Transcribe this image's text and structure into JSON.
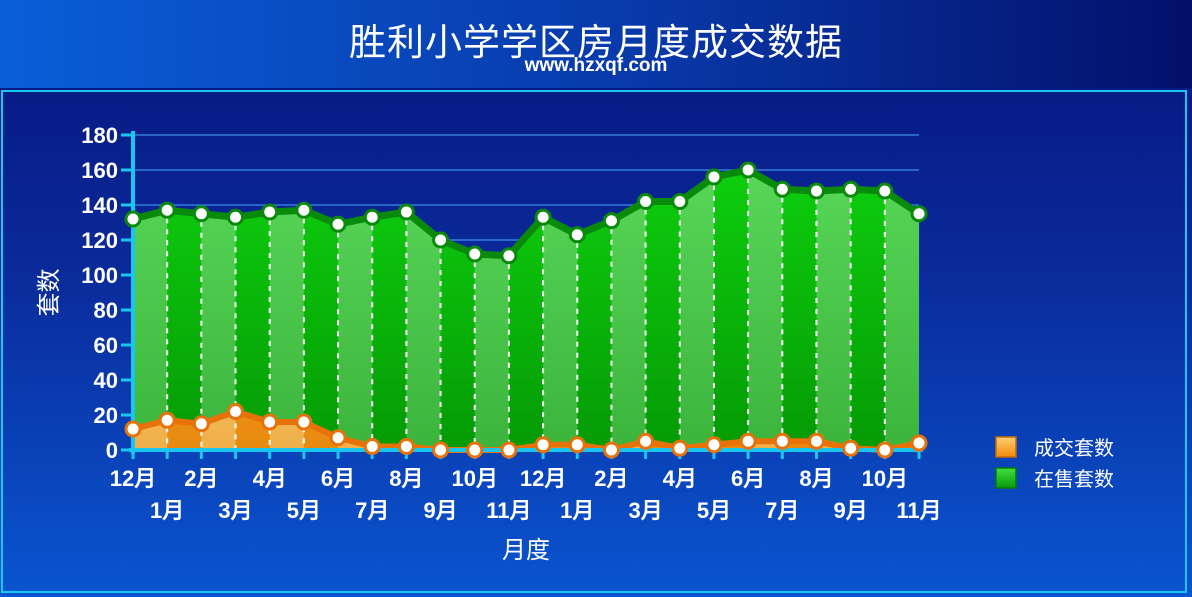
{
  "header": {
    "title": "胜利小学学区房月度成交数据",
    "subtitle": "www.hzxqf.com"
  },
  "chart_data": {
    "type": "area",
    "title": "胜利小学学区房月度成交数据",
    "subtitle": "www.hzxqf.com",
    "xlabel": "月度",
    "ylabel": "套数",
    "ylim": [
      0,
      180
    ],
    "yticks": [
      0,
      20,
      40,
      60,
      80,
      100,
      120,
      140,
      160,
      180
    ],
    "grid": true,
    "legend": "right",
    "categories": [
      "12月",
      "1月",
      "2月",
      "3月",
      "4月",
      "5月",
      "6月",
      "7月",
      "8月",
      "9月",
      "10月",
      "11月",
      "12月",
      "1月",
      "2月",
      "3月",
      "4月",
      "5月",
      "6月",
      "7月",
      "8月",
      "9月",
      "10月",
      "11月"
    ],
    "series": [
      {
        "name": "成交套数",
        "color": "#f39a1a",
        "values": [
          12,
          17,
          15,
          22,
          16,
          16,
          7,
          2,
          2,
          0,
          0,
          0,
          3,
          3,
          0,
          5,
          1,
          3,
          5,
          5,
          5,
          1,
          0,
          4
        ]
      },
      {
        "name": "在售套数",
        "color": "#16c816",
        "values": [
          132,
          137,
          135,
          133,
          136,
          137,
          129,
          133,
          136,
          120,
          112,
          111,
          133,
          123,
          131,
          142,
          142,
          156,
          160,
          149,
          148,
          149,
          148,
          135
        ]
      }
    ]
  }
}
